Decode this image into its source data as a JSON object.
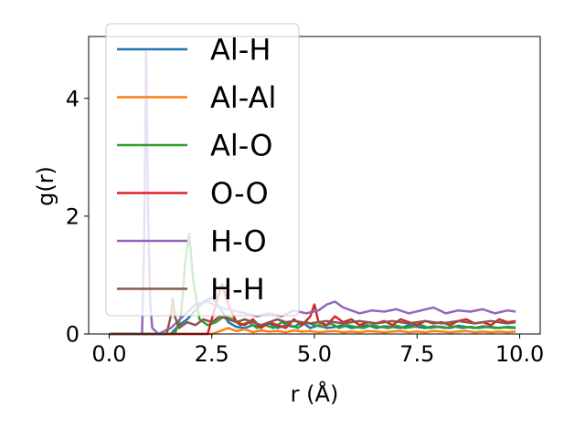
{
  "chart_data": {
    "type": "line",
    "xlabel": "r (Å)",
    "ylabel": "g(r)",
    "xlim": [
      -0.5,
      10.5
    ],
    "ylim": [
      0,
      5.05
    ],
    "xticks": [
      0.0,
      2.5,
      5.0,
      7.5,
      10.0
    ],
    "xtick_labels": [
      "0.0",
      "2.5",
      "5.0",
      "7.5",
      "10.0"
    ],
    "yticks": [
      0,
      2,
      4
    ],
    "ytick_labels": [
      "0",
      "2",
      "4"
    ],
    "grid": false,
    "legend": "upper-left",
    "series": [
      {
        "name": "Al-H",
        "color": "#1f77b4",
        "x": [
          0.0,
          1.5,
          1.7,
          1.9,
          2.1,
          2.3,
          2.5,
          2.7,
          2.9,
          3.1,
          3.3,
          3.5,
          3.7,
          3.9,
          4.1,
          4.3,
          4.5,
          4.7,
          4.9,
          5.1,
          5.3,
          5.5,
          5.7,
          5.9,
          6.1,
          6.3,
          6.5,
          6.7,
          6.9,
          7.1,
          7.3,
          7.5,
          7.7,
          7.9,
          8.1,
          8.3,
          8.5,
          8.7,
          8.9,
          9.1,
          9.3,
          9.5,
          9.7,
          9.9
        ],
        "y": [
          0,
          0,
          0.15,
          0.25,
          0.4,
          0.55,
          0.62,
          0.45,
          0.2,
          0.12,
          0.1,
          0.15,
          0.12,
          0.18,
          0.1,
          0.15,
          0.12,
          0.2,
          0.1,
          0.15,
          0.1,
          0.12,
          0.15,
          0.1,
          0.12,
          0.15,
          0.1,
          0.13,
          0.12,
          0.1,
          0.15,
          0.12,
          0.1,
          0.13,
          0.12,
          0.1,
          0.14,
          0.12,
          0.1,
          0.13,
          0.12,
          0.1,
          0.12,
          0.11
        ]
      },
      {
        "name": "Al-Al",
        "color": "#ff7f0e",
        "x": [
          0.0,
          2.5,
          2.7,
          2.9,
          3.1,
          3.3,
          3.5,
          3.7,
          3.9,
          4.1,
          4.3,
          4.5,
          4.7,
          4.9,
          5.1,
          5.3,
          5.5,
          5.7,
          5.9,
          6.1,
          6.3,
          6.5,
          6.7,
          6.9,
          7.1,
          7.3,
          7.5,
          7.7,
          7.9,
          8.1,
          8.3,
          8.5,
          8.7,
          8.9,
          9.1,
          9.3,
          9.5,
          9.7,
          9.9
        ],
        "y": [
          0,
          0,
          0.05,
          0.1,
          0.05,
          0.08,
          0.03,
          0.06,
          0.04,
          0.05,
          0.03,
          0.06,
          0.04,
          0.05,
          0.03,
          0.04,
          0.05,
          0.03,
          0.04,
          0.03,
          0.05,
          0.04,
          0.03,
          0.04,
          0.05,
          0.03,
          0.04,
          0.03,
          0.05,
          0.04,
          0.03,
          0.04,
          0.05,
          0.03,
          0.04,
          0.03,
          0.04,
          0.03,
          0.04
        ]
      },
      {
        "name": "Al-O",
        "color": "#2ca02c",
        "x": [
          0.0,
          1.6,
          1.75,
          1.85,
          1.95,
          2.05,
          2.2,
          2.4,
          2.6,
          2.8,
          3.0,
          3.2,
          3.4,
          3.6,
          3.8,
          4.0,
          4.2,
          4.4,
          4.6,
          4.8,
          5.0,
          5.2,
          5.4,
          5.6,
          5.8,
          6.0,
          6.2,
          6.4,
          6.6,
          6.8,
          7.0,
          7.2,
          7.4,
          7.6,
          7.8,
          8.0,
          8.2,
          8.4,
          8.6,
          8.8,
          9.0,
          9.2,
          9.4,
          9.6,
          9.9
        ],
        "y": [
          0,
          0,
          0.3,
          1.2,
          1.7,
          0.9,
          0.25,
          0.15,
          0.2,
          0.3,
          0.25,
          0.15,
          0.2,
          0.1,
          0.15,
          0.1,
          0.2,
          0.15,
          0.1,
          0.2,
          0.15,
          0.12,
          0.18,
          0.1,
          0.15,
          0.12,
          0.1,
          0.15,
          0.12,
          0.1,
          0.14,
          0.1,
          0.12,
          0.15,
          0.1,
          0.12,
          0.1,
          0.13,
          0.1,
          0.12,
          0.1,
          0.12,
          0.1,
          0.11,
          0.1
        ]
      },
      {
        "name": "O-O",
        "color": "#d62728",
        "x": [
          0.0,
          2.4,
          2.6,
          2.75,
          2.9,
          3.1,
          3.3,
          3.5,
          3.7,
          3.9,
          4.1,
          4.3,
          4.5,
          4.7,
          4.9,
          5.0,
          5.1,
          5.3,
          5.5,
          5.7,
          5.9,
          6.1,
          6.3,
          6.5,
          6.7,
          6.9,
          7.1,
          7.3,
          7.5,
          7.7,
          7.9,
          8.1,
          8.3,
          8.5,
          8.7,
          8.9,
          9.1,
          9.3,
          9.5,
          9.7,
          9.9
        ],
        "y": [
          0,
          0,
          0.5,
          0.85,
          0.5,
          0.2,
          0.15,
          0.25,
          0.1,
          0.2,
          0.15,
          0.1,
          0.25,
          0.15,
          0.3,
          0.5,
          0.2,
          0.15,
          0.3,
          0.2,
          0.25,
          0.15,
          0.2,
          0.18,
          0.22,
          0.15,
          0.25,
          0.2,
          0.15,
          0.22,
          0.18,
          0.2,
          0.15,
          0.22,
          0.25,
          0.18,
          0.2,
          0.15,
          0.25,
          0.2,
          0.22
        ]
      },
      {
        "name": "H-O",
        "color": "#9467bd",
        "x": [
          0.0,
          0.8,
          0.85,
          0.9,
          0.95,
          1.0,
          1.05,
          1.2,
          1.5,
          1.8,
          2.1,
          2.4,
          2.7,
          3.0,
          3.3,
          3.6,
          3.9,
          4.2,
          4.5,
          4.8,
          5.1,
          5.3,
          5.5,
          5.7,
          5.9,
          6.1,
          6.4,
          6.7,
          7.0,
          7.3,
          7.6,
          7.9,
          8.2,
          8.5,
          8.8,
          9.1,
          9.4,
          9.7,
          9.9
        ],
        "y": [
          0,
          0,
          1.5,
          4.8,
          2.0,
          0.5,
          0.1,
          0.0,
          0.1,
          0.3,
          0.5,
          0.55,
          0.45,
          0.4,
          0.35,
          0.3,
          0.35,
          0.3,
          0.4,
          0.35,
          0.4,
          0.5,
          0.55,
          0.45,
          0.4,
          0.35,
          0.4,
          0.38,
          0.42,
          0.35,
          0.4,
          0.45,
          0.35,
          0.4,
          0.38,
          0.42,
          0.35,
          0.4,
          0.38
        ]
      },
      {
        "name": "H-H",
        "color": "#8c564b",
        "x": [
          0.0,
          1.4,
          1.5,
          1.55,
          1.6,
          1.7,
          1.9,
          2.1,
          2.3,
          2.5,
          2.7,
          2.9,
          3.1,
          3.3,
          3.5,
          3.7,
          3.9,
          4.1,
          4.3,
          4.5,
          4.7,
          4.9,
          5.1,
          5.3,
          5.5,
          5.7,
          5.9,
          6.1,
          6.3,
          6.5,
          6.7,
          6.9,
          7.1,
          7.3,
          7.5,
          7.7,
          7.9,
          8.1,
          8.3,
          8.5,
          8.7,
          8.9,
          9.1,
          9.3,
          9.5,
          9.7,
          9.9
        ],
        "y": [
          0,
          0,
          0.3,
          0.6,
          0.3,
          0.1,
          0.2,
          0.15,
          0.25,
          0.2,
          0.3,
          0.25,
          0.2,
          0.25,
          0.2,
          0.15,
          0.2,
          0.25,
          0.2,
          0.22,
          0.2,
          0.18,
          0.2,
          0.22,
          0.2,
          0.18,
          0.2,
          0.22,
          0.2,
          0.18,
          0.2,
          0.22,
          0.2,
          0.18,
          0.2,
          0.22,
          0.2,
          0.18,
          0.2,
          0.22,
          0.2,
          0.18,
          0.2,
          0.22,
          0.2,
          0.18,
          0.2
        ]
      }
    ]
  }
}
